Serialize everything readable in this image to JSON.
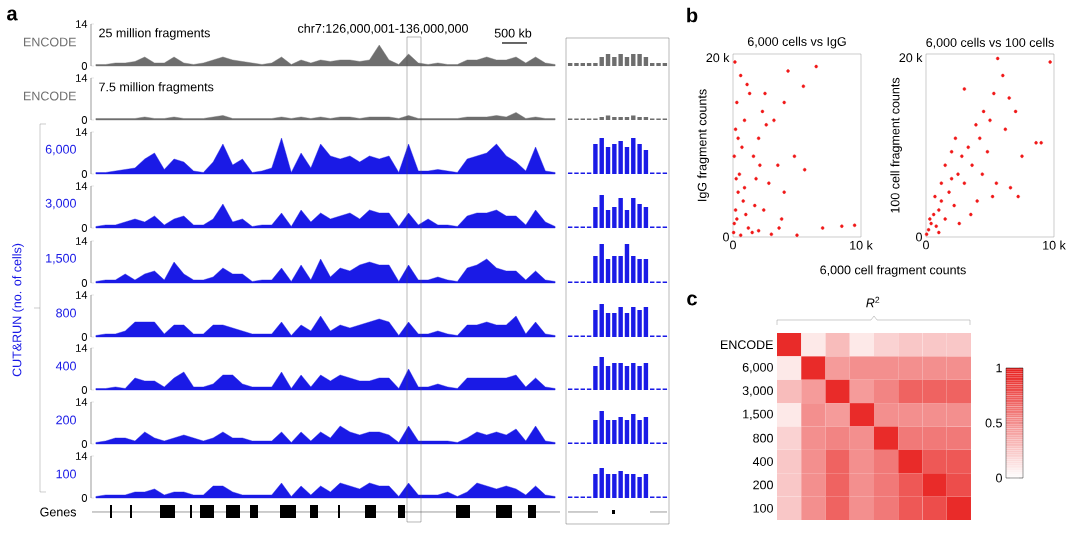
{
  "chart_data": [
    {
      "type": "area",
      "title": "25 million fragments",
      "ylabel": "ENCODE",
      "color": "#6e6e6e",
      "ylim": [
        0,
        14
      ],
      "yticks": [
        0,
        14
      ],
      "annotations": [
        "a",
        "chr7:126,000,001-136,000,000",
        "500 kb"
      ],
      "categories": [
        null,
        null,
        null,
        null,
        null,
        null,
        null,
        null,
        null,
        null,
        null,
        null,
        null,
        null,
        null,
        null,
        null,
        null,
        null,
        null,
        null,
        null,
        null,
        null,
        null,
        null,
        null,
        null,
        null,
        null,
        null,
        null,
        null,
        null,
        null,
        null,
        null,
        null,
        null,
        null,
        null,
        null,
        null,
        null,
        null,
        null,
        null,
        null
      ],
      "values": [
        0.5,
        0.5,
        1,
        1,
        1.5,
        3,
        1,
        1,
        3,
        1,
        0.5,
        1,
        2,
        3,
        2,
        1.5,
        1,
        0.5,
        1,
        3,
        0.5,
        2,
        1,
        2,
        1.5,
        2,
        2,
        1.5,
        2,
        7,
        2,
        0.5,
        4,
        1,
        0.5,
        1,
        0.5,
        0.5,
        2,
        2,
        3,
        2,
        2,
        3,
        1,
        3,
        1,
        0.5
      ]
    },
    {
      "type": "area",
      "title": "7.5 million fragments",
      "ylabel": "ENCODE",
      "color": "#6e6e6e",
      "ylim": [
        0,
        14
      ],
      "yticks": [
        0,
        14
      ],
      "categories": [
        null,
        null,
        null,
        null,
        null,
        null,
        null,
        null,
        null,
        null,
        null,
        null,
        null,
        null,
        null,
        null,
        null,
        null,
        null,
        null,
        null,
        null,
        null,
        null,
        null,
        null,
        null,
        null,
        null,
        null,
        null,
        null,
        null,
        null,
        null,
        null,
        null,
        null,
        null,
        null,
        null,
        null,
        null,
        null,
        null,
        null,
        null,
        null
      ],
      "values": [
        0.5,
        0.5,
        0.5,
        0.5,
        0.5,
        1,
        0.5,
        0.5,
        1,
        0.5,
        0.5,
        0.5,
        1,
        1.5,
        0.5,
        0.5,
        0.5,
        0.5,
        0.5,
        1,
        0.5,
        1,
        0.5,
        1,
        0.5,
        1,
        1,
        0.5,
        1,
        1,
        1,
        0.5,
        1.5,
        0.5,
        0.5,
        0.5,
        0.5,
        0.5,
        1,
        1,
        1,
        1.5,
        1,
        2.5,
        0.5,
        1,
        0.5,
        0.5
      ]
    },
    {
      "type": "area",
      "ylabel": "6,000",
      "color": "#1a1ae6",
      "ylim": [
        0,
        14
      ],
      "yticks": [
        0,
        14
      ],
      "annotations": [
        "CUT&RUN (no. of cells)"
      ],
      "categories": [
        null,
        null,
        null,
        null,
        null,
        null,
        null,
        null,
        null,
        null,
        null,
        null,
        null,
        null,
        null,
        null,
        null,
        null,
        null,
        null,
        null,
        null,
        null,
        null,
        null,
        null,
        null,
        null,
        null,
        null,
        null,
        null,
        null,
        null,
        null,
        null,
        null,
        null,
        null,
        null,
        null,
        null,
        null,
        null,
        null,
        null,
        null,
        null
      ],
      "values": [
        0.5,
        0.5,
        1,
        1.5,
        2,
        5,
        7,
        1.5,
        5,
        4,
        1,
        0.5,
        4,
        10,
        3,
        5,
        0.5,
        1,
        2,
        12,
        0.5,
        7,
        2,
        10,
        6,
        5,
        6,
        4,
        6,
        5,
        6,
        0.5,
        10,
        1,
        1,
        1.5,
        1,
        0.5,
        5,
        6,
        7,
        10,
        6,
        4,
        1,
        9,
        1,
        0.5
      ]
    },
    {
      "type": "area",
      "ylabel": "3,000",
      "color": "#1a1ae6",
      "ylim": [
        0,
        14
      ],
      "yticks": [
        0,
        14
      ],
      "categories": [
        null,
        null,
        null,
        null,
        null,
        null,
        null,
        null,
        null,
        null,
        null,
        null,
        null,
        null,
        null,
        null,
        null,
        null,
        null,
        null,
        null,
        null,
        null,
        null,
        null,
        null,
        null,
        null,
        null,
        null,
        null,
        null,
        null,
        null,
        null,
        null,
        null,
        null,
        null,
        null,
        null,
        null,
        null,
        null,
        null,
        null,
        null,
        null
      ],
      "values": [
        0.5,
        1,
        1,
        2,
        3,
        2,
        4,
        1,
        3,
        4,
        1,
        1,
        3,
        8,
        2,
        3,
        0.5,
        1,
        1,
        5,
        0.5,
        6,
        2,
        5,
        3,
        4,
        5,
        3,
        6,
        5,
        5,
        0.5,
        5,
        1,
        3,
        1,
        1,
        0.5,
        4,
        5,
        5,
        6,
        4,
        4,
        1,
        6,
        2,
        0.5
      ]
    },
    {
      "type": "area",
      "ylabel": "1,500",
      "color": "#1a1ae6",
      "ylim": [
        0,
        14
      ],
      "yticks": [
        0,
        14
      ],
      "categories": [
        null,
        null,
        null,
        null,
        null,
        null,
        null,
        null,
        null,
        null,
        null,
        null,
        null,
        null,
        null,
        null,
        null,
        null,
        null,
        null,
        null,
        null,
        null,
        null,
        null,
        null,
        null,
        null,
        null,
        null,
        null,
        null,
        null,
        null,
        null,
        null,
        null,
        null,
        null,
        null,
        null,
        null,
        null,
        null,
        null,
        null,
        null,
        null
      ],
      "values": [
        0.5,
        1,
        1,
        3,
        1,
        3,
        4,
        1,
        7,
        3,
        1,
        1,
        2,
        5,
        3,
        3,
        0.5,
        1,
        1,
        5,
        0.5,
        6,
        1,
        8,
        2,
        5,
        4,
        6,
        7,
        6,
        6,
        0.5,
        6,
        1,
        1,
        2,
        1,
        0.5,
        5,
        6,
        8,
        5,
        4,
        4,
        1,
        4,
        1,
        0.5
      ]
    },
    {
      "type": "area",
      "ylabel": "800",
      "color": "#1a1ae6",
      "ylim": [
        0,
        14
      ],
      "yticks": [
        0,
        14
      ],
      "categories": [
        null,
        null,
        null,
        null,
        null,
        null,
        null,
        null,
        null,
        null,
        null,
        null,
        null,
        null,
        null,
        null,
        null,
        null,
        null,
        null,
        null,
        null,
        null,
        null,
        null,
        null,
        null,
        null,
        null,
        null,
        null,
        null,
        null,
        null,
        null,
        null,
        null,
        null,
        null,
        null,
        null,
        null,
        null,
        null,
        null,
        null,
        null,
        null
      ],
      "values": [
        0.5,
        1,
        1,
        2,
        5,
        5,
        5,
        1,
        4,
        4,
        1,
        1,
        4,
        4,
        3,
        2,
        1,
        1,
        1,
        5,
        0.5,
        4,
        2,
        7,
        2,
        4,
        3,
        4,
        5,
        6,
        5,
        0.5,
        5,
        1,
        1,
        2,
        1,
        0.5,
        4,
        4,
        5,
        4,
        4,
        7,
        1,
        5,
        1,
        0.5
      ]
    },
    {
      "type": "area",
      "ylabel": "400",
      "color": "#1a1ae6",
      "ylim": [
        0,
        14
      ],
      "yticks": [
        0,
        14
      ],
      "categories": [
        null,
        null,
        null,
        null,
        null,
        null,
        null,
        null,
        null,
        null,
        null,
        null,
        null,
        null,
        null,
        null,
        null,
        null,
        null,
        null,
        null,
        null,
        null,
        null,
        null,
        null,
        null,
        null,
        null,
        null,
        null,
        null,
        null,
        null,
        null,
        null,
        null,
        null,
        null,
        null,
        null,
        null,
        null,
        null,
        null,
        null,
        null,
        null
      ],
      "values": [
        0.5,
        0.5,
        1,
        0.5,
        4,
        3,
        3,
        1,
        4,
        6,
        1,
        1,
        2,
        5,
        5,
        2,
        1,
        1,
        1,
        6,
        0.5,
        5,
        1,
        5,
        3,
        5,
        4,
        3,
        3,
        4,
        4,
        0.5,
        7,
        1,
        1,
        2,
        1,
        0.5,
        4,
        4,
        4,
        4,
        4,
        5,
        1,
        4,
        1,
        0.5
      ]
    },
    {
      "type": "area",
      "ylabel": "200",
      "color": "#1a1ae6",
      "ylim": [
        0,
        14
      ],
      "yticks": [
        0,
        14
      ],
      "categories": [
        null,
        null,
        null,
        null,
        null,
        null,
        null,
        null,
        null,
        null,
        null,
        null,
        null,
        null,
        null,
        null,
        null,
        null,
        null,
        null,
        null,
        null,
        null,
        null,
        null,
        null,
        null,
        null,
        null,
        null,
        null,
        null,
        null,
        null,
        null,
        null,
        null,
        null,
        null,
        null,
        null,
        null,
        null,
        null,
        null,
        null,
        null,
        null
      ],
      "values": [
        0.5,
        1,
        2,
        2,
        1,
        4,
        2,
        1,
        2,
        3,
        2,
        1,
        2,
        4,
        2,
        2,
        1,
        1,
        1,
        4,
        0.5,
        4,
        1,
        4,
        2,
        6,
        4,
        3,
        4,
        4,
        3,
        0.5,
        6,
        1,
        1,
        1,
        1,
        0.5,
        2,
        4,
        3,
        4,
        3,
        5,
        1,
        6,
        1,
        0.5
      ]
    },
    {
      "type": "area",
      "ylabel": "100",
      "color": "#1a1ae6",
      "ylim": [
        0,
        14
      ],
      "yticks": [
        0,
        14
      ],
      "categories": [
        null,
        null,
        null,
        null,
        null,
        null,
        null,
        null,
        null,
        null,
        null,
        null,
        null,
        null,
        null,
        null,
        null,
        null,
        null,
        null,
        null,
        null,
        null,
        null,
        null,
        null,
        null,
        null,
        null,
        null,
        null,
        null,
        null,
        null,
        null,
        null,
        null,
        null,
        null,
        null,
        null,
        null,
        null,
        null,
        null,
        null,
        null,
        null
      ],
      "values": [
        0.5,
        1,
        1,
        1,
        2,
        2,
        3,
        1,
        2,
        2,
        1,
        1,
        4,
        4,
        2,
        1,
        1,
        1,
        1,
        5,
        0.5,
        4,
        1,
        4,
        2,
        5,
        4,
        3,
        5,
        4,
        4,
        0.5,
        5,
        1,
        1,
        1,
        2,
        0.5,
        2,
        5,
        4,
        3,
        4,
        3,
        1,
        4,
        1,
        0.5
      ]
    },
    {
      "type": "bar",
      "color": "#6e6e6e",
      "ylim": [
        0,
        14
      ],
      "tick_labels": false,
      "categories": [
        null,
        null,
        null,
        null,
        null,
        null,
        null,
        null,
        null,
        null,
        null,
        null,
        null,
        null,
        null,
        null
      ],
      "values": [
        1,
        1,
        1,
        1,
        1,
        3,
        4,
        3,
        4,
        3,
        4,
        4,
        3,
        1,
        1,
        1
      ]
    },
    {
      "type": "bar",
      "color": "#6e6e6e",
      "ylim": [
        0,
        14
      ],
      "tick_labels": false,
      "categories": [
        null,
        null,
        null,
        null,
        null,
        null,
        null,
        null,
        null,
        null,
        null,
        null,
        null,
        null,
        null,
        null
      ],
      "values": [
        0.5,
        0.5,
        0.5,
        0.5,
        0.5,
        1,
        1.5,
        1,
        1,
        1,
        1.5,
        1,
        1,
        0.5,
        0.5,
        0.5
      ]
    },
    {
      "type": "bar",
      "color": "#1a1ae6",
      "ylim": [
        0,
        14
      ],
      "tick_labels": false,
      "categories": [
        null,
        null,
        null,
        null,
        null,
        null,
        null,
        null,
        null,
        null,
        null,
        null,
        null,
        null,
        null,
        null
      ],
      "values": [
        0.5,
        0.5,
        0.5,
        0.5,
        10,
        12,
        9,
        10,
        11,
        9,
        12,
        10,
        8,
        0.5,
        0.5,
        0.5
      ]
    },
    {
      "type": "bar",
      "color": "#1a1ae6",
      "ylim": [
        0,
        14
      ],
      "tick_labels": false,
      "categories": [
        null,
        null,
        null,
        null,
        null,
        null,
        null,
        null,
        null,
        null,
        null,
        null,
        null,
        null,
        null,
        null
      ],
      "values": [
        0.5,
        0.5,
        0.5,
        0.5,
        7,
        11,
        6,
        7,
        10,
        6,
        10,
        8,
        7,
        0.5,
        0.5,
        0.5
      ]
    },
    {
      "type": "bar",
      "color": "#1a1ae6",
      "ylim": [
        0,
        14
      ],
      "tick_labels": false,
      "categories": [
        null,
        null,
        null,
        null,
        null,
        null,
        null,
        null,
        null,
        null,
        null,
        null,
        null,
        null,
        null,
        null
      ],
      "values": [
        0.5,
        0.5,
        0.5,
        0.5,
        9,
        13,
        8,
        9,
        9,
        13,
        9,
        8,
        8,
        0.5,
        0.5,
        0.5
      ]
    },
    {
      "type": "bar",
      "color": "#1a1ae6",
      "ylim": [
        0,
        14
      ],
      "tick_labels": false,
      "categories": [
        null,
        null,
        null,
        null,
        null,
        null,
        null,
        null,
        null,
        null,
        null,
        null,
        null,
        null,
        null,
        null
      ],
      "values": [
        0.5,
        0.5,
        0.5,
        0.5,
        9,
        11,
        8,
        8,
        10,
        8,
        10,
        9,
        10,
        0.5,
        0.5,
        0.5
      ]
    },
    {
      "type": "bar",
      "color": "#1a1ae6",
      "ylim": [
        0,
        14
      ],
      "tick_labels": false,
      "categories": [
        null,
        null,
        null,
        null,
        null,
        null,
        null,
        null,
        null,
        null,
        null,
        null,
        null,
        null,
        null,
        null
      ],
      "values": [
        0.5,
        0.5,
        0.5,
        0.5,
        8,
        11,
        8,
        9,
        9,
        8,
        9,
        8,
        9,
        0.5,
        0.5,
        0.5
      ]
    },
    {
      "type": "bar",
      "color": "#1a1ae6",
      "ylim": [
        0,
        14
      ],
      "tick_labels": false,
      "categories": [
        null,
        null,
        null,
        null,
        null,
        null,
        null,
        null,
        null,
        null,
        null,
        null,
        null,
        null,
        null,
        null
      ],
      "values": [
        0.5,
        0.5,
        0.5,
        0.5,
        8,
        11,
        8,
        8,
        9,
        8,
        10,
        8,
        9,
        0.5,
        0.5,
        0.5
      ]
    },
    {
      "type": "bar",
      "color": "#1a1ae6",
      "ylim": [
        0,
        14
      ],
      "tick_labels": false,
      "categories": [
        null,
        null,
        null,
        null,
        null,
        null,
        null,
        null,
        null,
        null,
        null,
        null,
        null,
        null,
        null,
        null
      ],
      "values": [
        0.5,
        0.5,
        0.5,
        0.5,
        8,
        10,
        8,
        8,
        9,
        8,
        8,
        7,
        8,
        0.5,
        0.5,
        0.5
      ]
    },
    {
      "type": "other",
      "ylabel": "Genes"
    },
    {
      "type": "scatter",
      "title": "6,000 cells vs IgG",
      "xlabel": "6,000 cell fragment counts",
      "ylabel": "IgG fragment counts",
      "annotations": [
        "b"
      ],
      "color": "#f01818",
      "xlim": [
        0,
        10000
      ],
      "ylim": [
        0,
        20400
      ],
      "xticks": [
        0,
        {
          "value": 10000,
          "label": "10 k"
        }
      ],
      "yticks": [
        0,
        {
          "value": 20000,
          "label": "20 k"
        }
      ],
      "x": [
        50,
        100,
        200,
        300,
        400,
        500,
        100,
        200,
        300,
        600,
        150,
        800,
        1000,
        1200,
        1500,
        700,
        900,
        1300,
        1600,
        2000,
        2300,
        2600,
        2800,
        2400,
        2000,
        3000,
        3500,
        4000,
        4300,
        5500,
        6500,
        4000,
        5000,
        7000,
        8500,
        9500,
        3800,
        1800,
        1100,
        400,
        2500,
        3200,
        600,
        1700,
        2100,
        3600,
        5600,
        4800,
        250,
        900
      ],
      "values": [
        500,
        1500,
        3000,
        2000,
        5000,
        7000,
        9000,
        12000,
        15000,
        18000,
        19500,
        4000,
        2500,
        1000,
        500,
        10000,
        13000,
        16000,
        9000,
        11000,
        14000,
        12500,
        6000,
        3000,
        700,
        300,
        8000,
        15000,
        18500,
        16800,
        19000,
        5000,
        200,
        1000,
        1200,
        1300,
        2000,
        6500,
        17000,
        11000,
        16000,
        13000,
        200,
        3500,
        8000,
        1000,
        7500,
        9000,
        6500,
        5500
      ]
    },
    {
      "type": "scatter",
      "title": "6,000 cells vs 100 cells",
      "ylabel": "100 cell fragment counts",
      "color": "#f01818",
      "xlim": [
        0,
        10000
      ],
      "ylim": [
        0,
        20400
      ],
      "xticks": [
        0,
        {
          "value": 10000,
          "label": "10 k"
        }
      ],
      "yticks": [
        0,
        {
          "value": 20000,
          "label": "20 k"
        }
      ],
      "x": [
        50,
        200,
        400,
        600,
        800,
        1000,
        1200,
        300,
        1500,
        1800,
        2000,
        2200,
        2500,
        2800,
        3000,
        3300,
        3600,
        3900,
        4200,
        4500,
        4800,
        5000,
        5300,
        5600,
        6000,
        6200,
        6500,
        7000,
        7200,
        8600,
        9000,
        9700,
        1500,
        2300,
        1000,
        2600,
        3500,
        4000,
        5500,
        6600,
        3000,
        1200,
        700,
        2000,
        4400,
        5200,
        7500
      ],
      "values": [
        300,
        800,
        1500,
        2500,
        1200,
        3000,
        4000,
        2000,
        2000,
        5000,
        6500,
        3500,
        7000,
        9000,
        6000,
        10000,
        8000,
        12500,
        11000,
        14000,
        9500,
        13000,
        16000,
        19900,
        18000,
        12000,
        15500,
        14000,
        4500,
        10500,
        10500,
        19500,
        8000,
        11000,
        500,
        1500,
        2500,
        4000,
        6000,
        5500,
        16500,
        6000,
        4500,
        9500,
        7000,
        4500,
        9000
      ]
    },
    {
      "type": "heatmap",
      "title": "*R*$^{2}$",
      "annotations": [
        "c"
      ],
      "categories": [
        null,
        null,
        null,
        null,
        null,
        null,
        null,
        null
      ],
      "y_categories": [
        "ENCODE",
        "6,000",
        "3,000",
        "1,500",
        "800",
        "400",
        "200",
        "100"
      ],
      "cells": [
        [
          0.95,
          0.1,
          0.3,
          0.1,
          0.2,
          0.25,
          0.25,
          0.25
        ],
        [
          0.1,
          0.95,
          0.45,
          0.5,
          0.5,
          0.5,
          0.5,
          0.5
        ],
        [
          0.3,
          0.45,
          0.95,
          0.45,
          0.55,
          0.7,
          0.7,
          0.7
        ],
        [
          0.1,
          0.5,
          0.45,
          0.95,
          0.5,
          0.5,
          0.5,
          0.5
        ],
        [
          0.2,
          0.5,
          0.55,
          0.5,
          0.95,
          0.6,
          0.6,
          0.6
        ],
        [
          0.25,
          0.5,
          0.7,
          0.5,
          0.6,
          0.95,
          0.75,
          0.75
        ],
        [
          0.25,
          0.5,
          0.7,
          0.5,
          0.6,
          0.75,
          0.95,
          0.8
        ],
        [
          0.25,
          0.5,
          0.7,
          0.5,
          0.6,
          0.75,
          0.8,
          0.95
        ]
      ],
      "color": "#e8201e",
      "clim": [
        0,
        1
      ],
      "cticks": [
        0,
        0.5,
        1
      ]
    }
  ]
}
